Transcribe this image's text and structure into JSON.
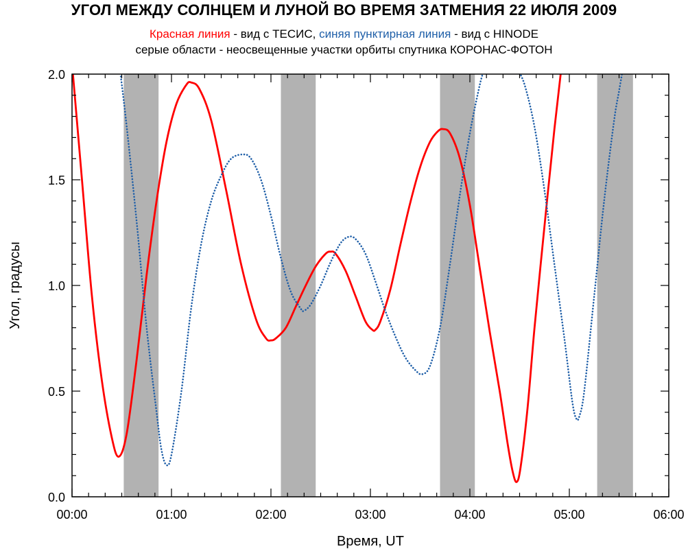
{
  "title": "УГОЛ МЕЖДУ СОЛНЦЕМ И ЛУНОЙ ВО ВРЕМЯ ЗАТМЕНИЯ 22 ИЮЛЯ 2009",
  "subtitle": {
    "red_label": "Красная линия",
    "red_desc": " - вид с ТЕСИС, ",
    "blue_label": "синяя пунктирная линия",
    "blue_desc": " - вид с HINODE",
    "line2": "серые области - неосвещенные участки орбиты спутника КОРОНАС-ФОТОН"
  },
  "colors": {
    "red": "#ff0000",
    "blue": "#1f5fa8",
    "shade": "#b2b2b2"
  },
  "chart_data": {
    "type": "line",
    "xlabel": "Время, UT",
    "ylabel": "Угол, градусы",
    "xlim": [
      0,
      6
    ],
    "ylim": [
      0,
      2
    ],
    "x_ticks": [
      0,
      1,
      2,
      3,
      4,
      5,
      6
    ],
    "x_tick_labels": [
      "00:00",
      "01:00",
      "02:00",
      "03:00",
      "04:00",
      "05:00",
      "06:00"
    ],
    "y_ticks": [
      0,
      0.5,
      1,
      1.5,
      2
    ],
    "y_tick_labels": [
      "0.0",
      "0.5",
      "1.0",
      "1.5",
      "2.0"
    ],
    "shaded_regions": [
      [
        0.52,
        0.87
      ],
      [
        2.1,
        2.45
      ],
      [
        3.7,
        4.05
      ],
      [
        5.28,
        5.64
      ]
    ],
    "series": [
      {
        "color": "red",
        "style": "solid",
        "points": [
          [
            0.0,
            2.05
          ],
          [
            0.1,
            1.5
          ],
          [
            0.2,
            0.95
          ],
          [
            0.3,
            0.55
          ],
          [
            0.4,
            0.28
          ],
          [
            0.47,
            0.19
          ],
          [
            0.55,
            0.3
          ],
          [
            0.65,
            0.65
          ],
          [
            0.75,
            1.05
          ],
          [
            0.85,
            1.4
          ],
          [
            0.95,
            1.68
          ],
          [
            1.05,
            1.86
          ],
          [
            1.15,
            1.95
          ],
          [
            1.2,
            1.96
          ],
          [
            1.28,
            1.93
          ],
          [
            1.4,
            1.78
          ],
          [
            1.55,
            1.45
          ],
          [
            1.7,
            1.1
          ],
          [
            1.85,
            0.84
          ],
          [
            1.95,
            0.75
          ],
          [
            2.0,
            0.74
          ],
          [
            2.05,
            0.75
          ],
          [
            2.15,
            0.8
          ],
          [
            2.25,
            0.9
          ],
          [
            2.35,
            1.0
          ],
          [
            2.45,
            1.09
          ],
          [
            2.55,
            1.15
          ],
          [
            2.6,
            1.16
          ],
          [
            2.65,
            1.15
          ],
          [
            2.75,
            1.07
          ],
          [
            2.85,
            0.95
          ],
          [
            2.95,
            0.83
          ],
          [
            3.02,
            0.79
          ],
          [
            3.05,
            0.79
          ],
          [
            3.1,
            0.83
          ],
          [
            3.2,
            0.98
          ],
          [
            3.3,
            1.19
          ],
          [
            3.4,
            1.39
          ],
          [
            3.5,
            1.56
          ],
          [
            3.6,
            1.68
          ],
          [
            3.68,
            1.73
          ],
          [
            3.73,
            1.74
          ],
          [
            3.8,
            1.72
          ],
          [
            3.9,
            1.6
          ],
          [
            4.0,
            1.38
          ],
          [
            4.1,
            1.08
          ],
          [
            4.2,
            0.78
          ],
          [
            4.3,
            0.5
          ],
          [
            4.38,
            0.25
          ],
          [
            4.43,
            0.12
          ],
          [
            4.47,
            0.07
          ],
          [
            4.51,
            0.14
          ],
          [
            4.58,
            0.42
          ],
          [
            4.65,
            0.8
          ],
          [
            4.75,
            1.28
          ],
          [
            4.85,
            1.74
          ],
          [
            4.92,
            2.03
          ]
        ]
      },
      {
        "color": "blue",
        "style": "dotted",
        "points": [
          [
            0.48,
            2.03
          ],
          [
            0.55,
            1.75
          ],
          [
            0.65,
            1.3
          ],
          [
            0.75,
            0.8
          ],
          [
            0.85,
            0.4
          ],
          [
            0.9,
            0.22
          ],
          [
            0.95,
            0.15
          ],
          [
            1.0,
            0.2
          ],
          [
            1.1,
            0.5
          ],
          [
            1.2,
            0.9
          ],
          [
            1.3,
            1.2
          ],
          [
            1.4,
            1.4
          ],
          [
            1.5,
            1.52
          ],
          [
            1.6,
            1.6
          ],
          [
            1.72,
            1.62
          ],
          [
            1.8,
            1.6
          ],
          [
            1.9,
            1.5
          ],
          [
            2.0,
            1.33
          ],
          [
            2.1,
            1.13
          ],
          [
            2.2,
            0.97
          ],
          [
            2.3,
            0.89
          ],
          [
            2.33,
            0.88
          ],
          [
            2.4,
            0.91
          ],
          [
            2.5,
            1.0
          ],
          [
            2.6,
            1.11
          ],
          [
            2.7,
            1.2
          ],
          [
            2.78,
            1.23
          ],
          [
            2.85,
            1.22
          ],
          [
            2.95,
            1.15
          ],
          [
            3.05,
            1.02
          ],
          [
            3.15,
            0.88
          ],
          [
            3.25,
            0.76
          ],
          [
            3.35,
            0.66
          ],
          [
            3.45,
            0.6
          ],
          [
            3.52,
            0.58
          ],
          [
            3.6,
            0.62
          ],
          [
            3.7,
            0.8
          ],
          [
            3.8,
            1.1
          ],
          [
            3.9,
            1.43
          ],
          [
            4.0,
            1.72
          ],
          [
            4.1,
            1.95
          ],
          [
            4.15,
            2.03
          ]
        ]
      },
      {
        "color": "blue",
        "style": "dotted",
        "points": [
          [
            4.47,
            2.03
          ],
          [
            4.55,
            1.95
          ],
          [
            4.65,
            1.75
          ],
          [
            4.75,
            1.45
          ],
          [
            4.85,
            1.1
          ],
          [
            4.95,
            0.75
          ],
          [
            5.03,
            0.45
          ],
          [
            5.07,
            0.37
          ],
          [
            5.1,
            0.38
          ],
          [
            5.15,
            0.5
          ],
          [
            5.25,
            0.95
          ],
          [
            5.35,
            1.4
          ],
          [
            5.45,
            1.78
          ],
          [
            5.5,
            1.92
          ],
          [
            5.54,
            2.03
          ]
        ]
      }
    ]
  }
}
